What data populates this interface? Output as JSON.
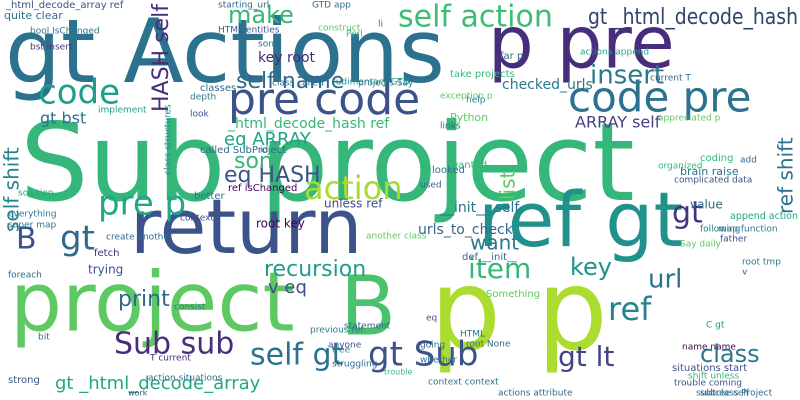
{
  "words": [
    {
      "text": "Sub project",
      "color": "#35b779"
    },
    {
      "text": "gt Actions",
      "color": "#2c728e"
    },
    {
      "text": "p pre",
      "color": "#472d7b"
    },
    {
      "text": "return",
      "color": "#3b528b"
    },
    {
      "text": "ref gt",
      "color": "#21918c"
    },
    {
      "text": "project",
      "color": "#5ec962"
    },
    {
      "text": "B",
      "color": "#4ac16d"
    },
    {
      "text": "p p",
      "color": "#addc30"
    },
    {
      "text": "pre code",
      "color": "#3b528b"
    },
    {
      "text": "code pre",
      "color": "#2c728e"
    },
    {
      "text": "self action",
      "color": "#3dbc74"
    },
    {
      "text": "gt _html_decode_hash",
      "color": "#31446b"
    },
    {
      "text": "make",
      "color": "#35b779"
    },
    {
      "text": "code",
      "color": "#1f9e89"
    },
    {
      "text": "insert",
      "color": "#2a788e"
    },
    {
      "text": "HASH self",
      "color": "#472d7b"
    },
    {
      "text": "self name",
      "color": "#31688e"
    },
    {
      "text": "self shift",
      "color": "#26828e"
    },
    {
      "text": "ref shift",
      "color": "#2c728e"
    },
    {
      "text": "pre p",
      "color": "#22a884"
    },
    {
      "text": "action",
      "color": "#a8db34"
    },
    {
      "text": "gt",
      "color": "#46327e"
    },
    {
      "text": "eq HASH",
      "color": "#3b528b"
    },
    {
      "text": "eq ARRAY",
      "color": "#20a486"
    },
    {
      "text": "son",
      "color": "#35b779"
    },
    {
      "text": "want",
      "color": "#2a788e"
    },
    {
      "text": "key",
      "color": "#21918c"
    },
    {
      "text": "list",
      "color": "#5ec962"
    },
    {
      "text": "item",
      "color": "#35b779"
    },
    {
      "text": "recursion",
      "color": "#1f9e89"
    },
    {
      "text": "print",
      "color": "#31688e"
    },
    {
      "text": "url",
      "color": "#2c728e"
    },
    {
      "text": "ref",
      "color": "#26828e"
    },
    {
      "text": "Sub sub",
      "color": "#472d7b"
    },
    {
      "text": "self gt",
      "color": "#2c728e"
    },
    {
      "text": "gt Sub",
      "color": "#3b528b"
    },
    {
      "text": "gt lt",
      "color": "#414487"
    },
    {
      "text": "class",
      "color": "#2a788e"
    },
    {
      "text": "gt _html_decode_array",
      "color": "#22a884"
    },
    {
      "text": "B",
      "color": "#3b528b"
    },
    {
      "text": "gt",
      "color": "#31688e"
    },
    {
      "text": "gt bst",
      "color": "#2c728e"
    },
    {
      "text": "key root",
      "color": "#482878"
    },
    {
      "text": "ARRAY self",
      "color": "#433e85"
    },
    {
      "text": "urls_to_check",
      "color": "#31688e"
    },
    {
      "text": "__init__ self",
      "color": "#2c728e"
    },
    {
      "text": "checked_urls",
      "color": "#2a788e"
    },
    {
      "text": "_html_decode_hash ref",
      "color": "#35b779"
    },
    {
      "text": "unless ref",
      "color": "#3e4989"
    },
    {
      "text": "root key",
      "color": "#440154"
    },
    {
      "text": "trying",
      "color": "#3b528b"
    },
    {
      "text": "value",
      "color": "#31688e"
    },
    {
      "text": "coding",
      "color": "#35b779"
    },
    {
      "text": "brain raise",
      "color": "#2c728e"
    },
    {
      "text": "append action",
      "color": "#22a884"
    },
    {
      "text": "quite clear",
      "color": "#2c728e"
    },
    {
      "text": "_html_decode_array ref",
      "color": "#3b528b"
    },
    {
      "text": "GTD app",
      "color": "#31688e"
    },
    {
      "text": "construct",
      "color": "#5ec962"
    },
    {
      "text": "bool IsChanged",
      "color": "#2a788e"
    },
    {
      "text": "bst insert",
      "color": "#46327e"
    },
    {
      "text": "classes",
      "color": "#31688e"
    },
    {
      "text": "class called",
      "color": "#2c728e"
    },
    {
      "text": "rudimentary GTD",
      "color": "#21918c"
    },
    {
      "text": "take projects",
      "color": "#35b779"
    },
    {
      "text": "actions append",
      "color": "#22a884"
    },
    {
      "text": "far p",
      "color": "#31688e"
    },
    {
      "text": "Python",
      "color": "#5ec962"
    },
    {
      "text": "help",
      "color": "#2a788e"
    },
    {
      "text": "links",
      "color": "#31688e"
    },
    {
      "text": "implement",
      "color": "#1f9e89"
    },
    {
      "text": "look",
      "color": "#3b528b"
    },
    {
      "text": "depth",
      "color": "#2a788e"
    },
    {
      "text": "called SubProject",
      "color": "#31688e"
    },
    {
      "text": "ref isChanged",
      "color": "#440154"
    },
    {
      "text": "class structures",
      "color": "#21918c"
    },
    {
      "text": "better",
      "color": "#2a788e"
    },
    {
      "text": "context",
      "color": "#3b528b"
    },
    {
      "text": "create another",
      "color": "#31688e"
    },
    {
      "text": "fetch",
      "color": "#472d7b"
    },
    {
      "text": "another class",
      "color": "#5ec962"
    },
    {
      "text": "used",
      "color": "#31688e"
    },
    {
      "text": "looked",
      "color": "#2c728e"
    },
    {
      "text": "wanted",
      "color": "#35b779"
    },
    {
      "text": "Something",
      "color": "#5ec962"
    },
    {
      "text": "def __init__",
      "color": "#31688e"
    },
    {
      "text": "situations start",
      "color": "#3b528b"
    },
    {
      "text": "name name",
      "color": "#440154"
    },
    {
      "text": "C gt",
      "color": "#21918c"
    },
    {
      "text": "shift unless",
      "color": "#35b779"
    },
    {
      "text": "trouble coming",
      "color": "#3b528b"
    },
    {
      "text": "subclass Project",
      "color": "#31688e"
    },
    {
      "text": "subtree self",
      "color": "#2c728e"
    },
    {
      "text": "previous ref",
      "color": "#2a788e"
    },
    {
      "text": "tree",
      "color": "#21918c"
    },
    {
      "text": "struggling",
      "color": "#31688e"
    },
    {
      "text": "anyone",
      "color": "#3b528b"
    },
    {
      "text": "statement",
      "color": "#31688e"
    },
    {
      "text": "whether",
      "color": "#2a788e"
    },
    {
      "text": "context context",
      "color": "#2c728e"
    },
    {
      "text": "actions attribute",
      "color": "#31688e"
    },
    {
      "text": "trouble",
      "color": "#35b779"
    },
    {
      "text": "action situations",
      "color": "#2c728e"
    },
    {
      "text": "T current",
      "color": "#472d7b"
    },
    {
      "text": "work",
      "color": "#3b528b"
    },
    {
      "text": "bit",
      "color": "#31688e"
    },
    {
      "text": "strong",
      "color": "#3b528b"
    },
    {
      "text": "consist",
      "color": "#2a788e"
    },
    {
      "text": "solution",
      "color": "#22a884"
    },
    {
      "text": "foreach",
      "color": "#31688e"
    },
    {
      "text": "super map",
      "color": "#2c728e"
    },
    {
      "text": "everything",
      "color": "#2a788e"
    },
    {
      "text": "father",
      "color": "#3b528b"
    },
    {
      "text": "add",
      "color": "#31688e"
    },
    {
      "text": "Say daily",
      "color": "#5ec962"
    },
    {
      "text": "following",
      "color": "#2a788e"
    },
    {
      "text": "starting_url",
      "color": "#31688e"
    },
    {
      "text": "HTML entities",
      "color": "#3b528b"
    },
    {
      "text": "son",
      "color": "#2c728e"
    },
    {
      "text": "Perl",
      "color": "#35b779"
    },
    {
      "text": "projects Say",
      "color": "#2a788e"
    },
    {
      "text": "exception p",
      "color": "#5ec962"
    },
    {
      "text": "appreciated p",
      "color": "#5ec962"
    },
    {
      "text": "current T",
      "color": "#31688e"
    },
    {
      "text": "map function",
      "color": "#2a788e"
    },
    {
      "text": "organized",
      "color": "#35b779"
    },
    {
      "text": "complicated data",
      "color": "#3b528b"
    },
    {
      "text": "going",
      "color": "#31688e"
    },
    {
      "text": "HTML",
      "color": "#2c728e"
    },
    {
      "text": "eq",
      "color": "#3b528b"
    },
    {
      "text": "root None",
      "color": "#31688e"
    },
    {
      "text": "root tmp",
      "color": "#2a788e"
    },
    {
      "text": "v",
      "color": "#3b528b"
    },
    {
      "text": "v eq",
      "color": "#3b528b"
    },
    {
      "text": "li",
      "color": "#2c728e"
    },
    {
      "text": "id",
      "color": "#31688e"
    }
  ]
}
